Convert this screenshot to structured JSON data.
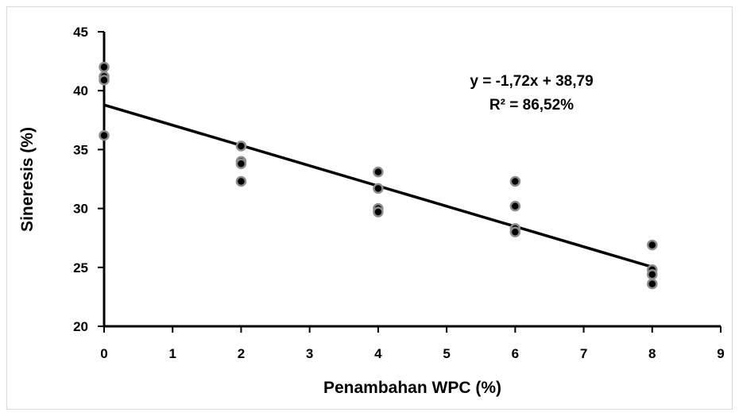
{
  "chart_data": {
    "type": "scatter",
    "title": "",
    "xlabel": "Penambahan WPC (%)",
    "ylabel": "Sineresis (%)",
    "xlim": [
      0,
      9
    ],
    "ylim": [
      20,
      45
    ],
    "xticks": [
      "0",
      "1",
      "2",
      "3",
      "4",
      "5",
      "6",
      "7",
      "8",
      "9"
    ],
    "yticks": [
      "20",
      "25",
      "30",
      "35",
      "40",
      "45"
    ],
    "grid": false,
    "legend": "none",
    "series": [
      {
        "points": [
          {
            "x": 0,
            "y": 42.0
          },
          {
            "x": 0,
            "y": 41.2
          },
          {
            "x": 0,
            "y": 40.9
          },
          {
            "x": 0,
            "y": 36.2
          },
          {
            "x": 2,
            "y": 35.3
          },
          {
            "x": 2,
            "y": 34.0
          },
          {
            "x": 2,
            "y": 33.8
          },
          {
            "x": 2,
            "y": 32.3
          },
          {
            "x": 4,
            "y": 33.1
          },
          {
            "x": 4,
            "y": 31.7
          },
          {
            "x": 4,
            "y": 30.0
          },
          {
            "x": 4,
            "y": 29.7
          },
          {
            "x": 6,
            "y": 32.3
          },
          {
            "x": 6,
            "y": 30.2
          },
          {
            "x": 6,
            "y": 28.3
          },
          {
            "x": 6,
            "y": 28.0
          },
          {
            "x": 8,
            "y": 26.9
          },
          {
            "x": 8,
            "y": 24.8
          },
          {
            "x": 8,
            "y": 24.4
          },
          {
            "x": 8,
            "y": 23.6
          }
        ]
      }
    ],
    "trendline": {
      "type": "linear",
      "slope": -1.72,
      "intercept": 38.79,
      "x_range": [
        0,
        8
      ],
      "equation": "y = -1,72x + 38,79",
      "r_squared": "R² = 86,52%"
    },
    "colors": {
      "marker_fill": "#000000",
      "marker_stroke": "#8c8c8c",
      "trendline": "#000000",
      "axis": "#000000"
    }
  }
}
